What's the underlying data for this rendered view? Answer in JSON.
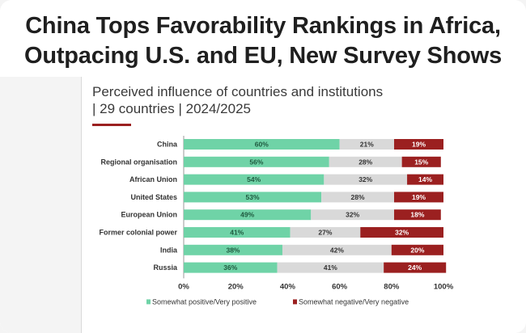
{
  "headline": {
    "line1": "China Tops Favorability Rankings in Africa,",
    "line2": "Outpacing U.S. and EU, New Survey Shows"
  },
  "colors": {
    "positive": "#6fd3a7",
    "neutral": "#d9d9d9",
    "negative": "#9b2020",
    "accent": "#9b2020"
  },
  "chart_data": {
    "type": "bar",
    "orientation": "horizontal",
    "stacked": true,
    "title": "Perceived influence of countries and institutions",
    "subtitle": "| 29 countries | 2024/2025",
    "categories": [
      "China",
      "Regional organisation",
      "African Union",
      "United States",
      "European Union",
      "Former colonial power",
      "India",
      "Russia"
    ],
    "series": [
      {
        "name": "Somewhat positive/Very positive",
        "values": [
          60,
          56,
          54,
          53,
          49,
          41,
          38,
          36
        ]
      },
      {
        "name": "",
        "values": [
          21,
          28,
          32,
          28,
          32,
          27,
          42,
          41
        ]
      },
      {
        "name": "Somewhat negative/Very negative",
        "values": [
          19,
          15,
          14,
          19,
          18,
          32,
          20,
          24
        ]
      }
    ],
    "xlim": [
      0,
      100
    ],
    "xticks": [
      "0%",
      "20%",
      "40%",
      "60%",
      "80%",
      "100%"
    ],
    "legend_position": "bottom"
  }
}
